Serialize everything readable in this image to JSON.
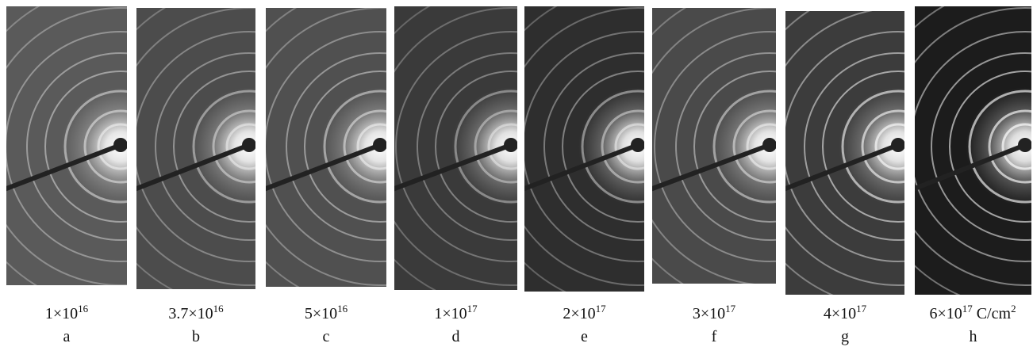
{
  "panels": [
    {
      "dose": "1×10",
      "exponent": "16",
      "letter": "a"
    },
    {
      "dose": "3.7×10",
      "exponent": "16",
      "letter": "b"
    },
    {
      "dose": "5×10",
      "exponent": "16",
      "letter": "c"
    },
    {
      "dose": "1×10",
      "exponent": "17",
      "letter": "d"
    },
    {
      "dose": "2×10",
      "exponent": "17",
      "letter": "e"
    },
    {
      "dose": "3×10",
      "exponent": "17",
      "letter": "f"
    },
    {
      "dose": "4×10",
      "exponent": "17",
      "letter": "g"
    },
    {
      "dose": "6×10",
      "exponent": "17",
      "unit": " C/cm",
      "unit_exponent": "2",
      "letter": "h"
    }
  ]
}
